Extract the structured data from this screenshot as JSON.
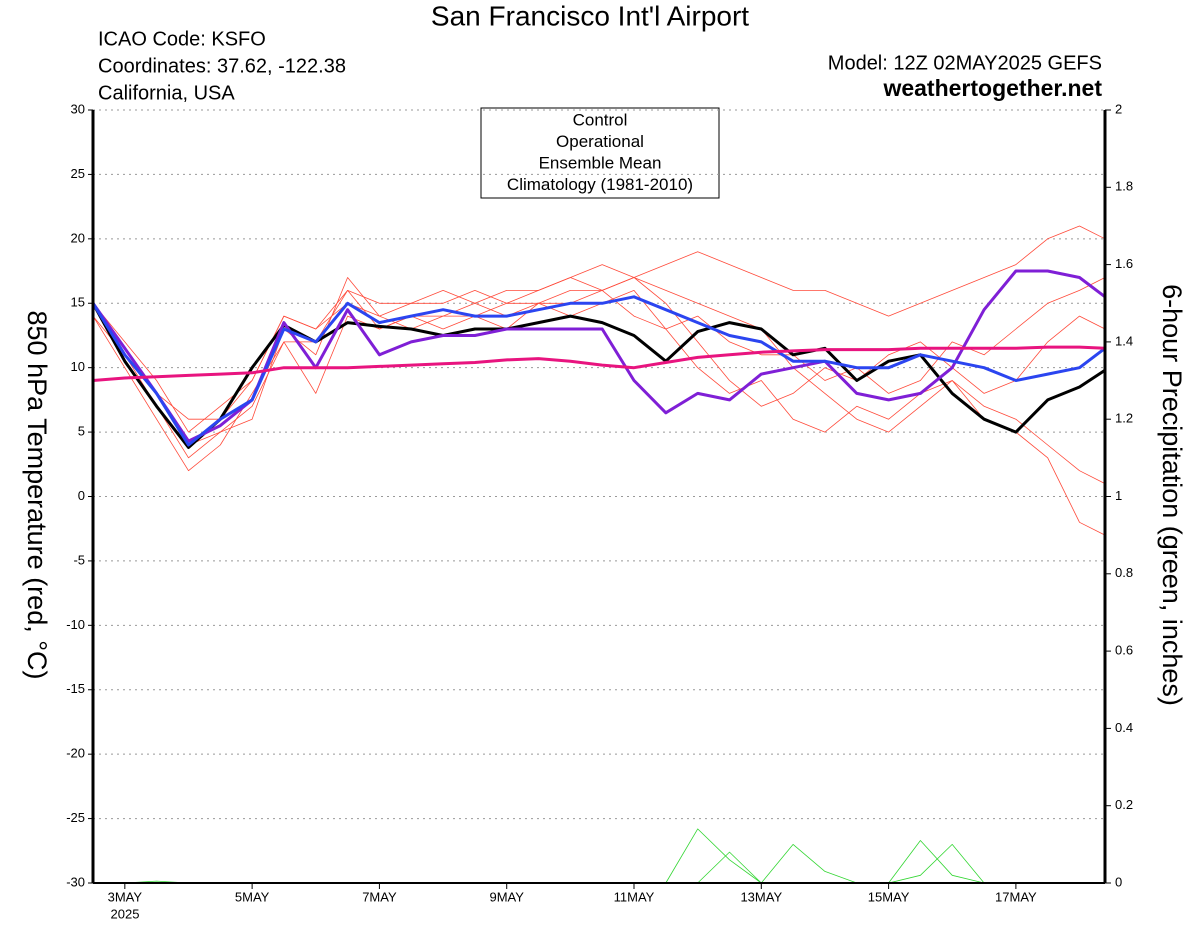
{
  "chart_data": {
    "type": "line",
    "title": "San Francisco Int'l Airport",
    "annotations": [
      "ICAO Code: KSFO",
      "Coordinates: 37.62, -122.38",
      "California, USA",
      "Model: 12Z 02MAY2025 GEFS",
      "weathertogether.net",
      "2025"
    ],
    "ylabel": "850 hPa Temperature (red, °C)",
    "y2label": "6-hour Precipitation (green, inches)",
    "x": [
      2.5,
      3,
      3.5,
      4,
      4.5,
      5,
      5.5,
      6,
      6.5,
      7,
      7.5,
      8,
      8.5,
      9,
      9.5,
      10,
      10.5,
      11,
      11.5,
      12,
      12.5,
      13,
      13.5,
      14,
      14.5,
      15,
      15.5,
      16,
      16.5,
      17,
      17.5,
      18,
      18.4
    ],
    "xlim": [
      2.5,
      18.4
    ],
    "xticks": [
      {
        "value": 3,
        "label": "3MAY"
      },
      {
        "value": 5,
        "label": "5MAY"
      },
      {
        "value": 7,
        "label": "7MAY"
      },
      {
        "value": 9,
        "label": "9MAY"
      },
      {
        "value": 11,
        "label": "11MAY"
      },
      {
        "value": 13,
        "label": "13MAY"
      },
      {
        "value": 15,
        "label": "15MAY"
      },
      {
        "value": 17,
        "label": "17MAY"
      }
    ],
    "ylim": [
      -30,
      30
    ],
    "yticks": [
      -30,
      -25,
      -20,
      -15,
      -10,
      -5,
      0,
      5,
      10,
      15,
      20,
      25,
      30
    ],
    "y2lim": [
      0,
      2
    ],
    "y2ticks": [
      0,
      0.2,
      0.4,
      0.6,
      0.8,
      1,
      1.2,
      1.4,
      1.6,
      1.8,
      2
    ],
    "grid": true,
    "legend": "top-center",
    "member_color": "#ff4a3a",
    "members": [
      [
        15,
        12,
        9,
        5,
        7,
        9,
        14,
        13,
        16,
        15,
        15,
        16,
        15,
        16,
        16,
        17,
        18,
        17,
        18,
        19,
        18,
        17,
        16,
        16,
        15,
        14,
        15,
        16,
        17,
        18,
        20,
        21,
        20
      ],
      [
        14,
        10,
        6,
        2,
        4,
        8,
        12,
        8,
        14,
        13,
        14,
        13,
        14,
        13,
        15,
        14,
        15,
        16,
        13,
        10,
        8,
        9,
        6,
        5,
        7,
        6,
        8,
        9,
        7,
        6,
        4,
        2,
        1
      ],
      [
        15,
        11,
        7,
        3,
        5,
        6,
        13,
        11,
        17,
        14,
        15,
        15,
        16,
        15,
        16,
        17,
        16,
        17,
        15,
        12,
        9,
        7,
        8,
        10,
        9,
        11,
        12,
        10,
        8,
        9,
        12,
        14,
        13
      ],
      [
        14,
        11,
        8,
        6,
        6,
        9,
        14,
        13,
        15,
        14,
        13,
        14,
        14,
        15,
        15,
        16,
        16,
        14,
        13,
        14,
        12,
        11,
        11,
        9,
        10,
        8,
        9,
        12,
        11,
        13,
        15,
        16,
        17
      ],
      [
        15,
        11,
        8,
        4,
        5,
        7,
        12,
        12,
        16,
        13,
        14,
        14,
        15,
        14,
        15,
        15,
        16,
        17,
        16,
        15,
        14,
        13,
        10,
        8,
        6,
        5,
        7,
        9,
        6,
        5,
        3,
        -2,
        -3
      ]
    ],
    "precip_color": "#33d633",
    "precip_members": [
      [
        0,
        0,
        0.005,
        0,
        0,
        0,
        0,
        0,
        0,
        0,
        0,
        0,
        0,
        0,
        0,
        0,
        0,
        0,
        0,
        0.14,
        0.06,
        0,
        0,
        0,
        0,
        0,
        0.11,
        0.02,
        0,
        0,
        0,
        0,
        0
      ],
      [
        0,
        0,
        0,
        0,
        0,
        0,
        0,
        0,
        0,
        0,
        0,
        0,
        0,
        0,
        0,
        0,
        0,
        0,
        0,
        0,
        0.08,
        0,
        0.1,
        0.03,
        0,
        0,
        0.02,
        0.1,
        0,
        0,
        0,
        0,
        0
      ]
    ],
    "series": [
      {
        "name": "Control",
        "color": "#000000",
        "values": [
          15,
          10.5,
          7,
          3.8,
          6,
          10,
          13.3,
          12,
          13.5,
          13.2,
          13,
          12.5,
          13,
          13,
          13.5,
          14,
          13.5,
          12.5,
          10.5,
          12.8,
          13.5,
          13,
          11,
          11.5,
          9,
          10.5,
          11,
          8,
          6,
          5,
          7.5,
          8.5,
          9.8
        ]
      },
      {
        "name": "Operational",
        "color": "#7f1fd6",
        "values": [
          15,
          11.5,
          8,
          4.3,
          5.5,
          7.5,
          13.5,
          10,
          14.5,
          11,
          12,
          12.5,
          12.5,
          13,
          13,
          13,
          13,
          9,
          6.5,
          8,
          7.5,
          9.5,
          10,
          10.5,
          8,
          7.5,
          8,
          10,
          14.5,
          17.5,
          17.5,
          17,
          15.5
        ]
      },
      {
        "name": "Ensemble Mean",
        "color": "#2b45f0",
        "values": [
          15,
          11,
          8,
          4,
          6,
          7.5,
          13,
          12,
          15,
          13.5,
          14,
          14.5,
          14,
          14,
          14.5,
          15,
          15,
          15.5,
          14.5,
          13.5,
          12.5,
          12,
          10.5,
          10.5,
          10,
          10,
          11,
          10.5,
          10,
          9,
          9.5,
          10,
          11.5
        ]
      },
      {
        "name": "Climatology (1981-2010)",
        "color": "#e8147f",
        "values": [
          9,
          9.2,
          9.3,
          9.4,
          9.5,
          9.6,
          10,
          10,
          10,
          10.1,
          10.2,
          10.3,
          10.4,
          10.6,
          10.7,
          10.5,
          10.2,
          10,
          10.4,
          10.8,
          11,
          11.2,
          11.3,
          11.4,
          11.4,
          11.4,
          11.5,
          11.5,
          11.5,
          11.5,
          11.6,
          11.6,
          11.5
        ]
      }
    ]
  }
}
